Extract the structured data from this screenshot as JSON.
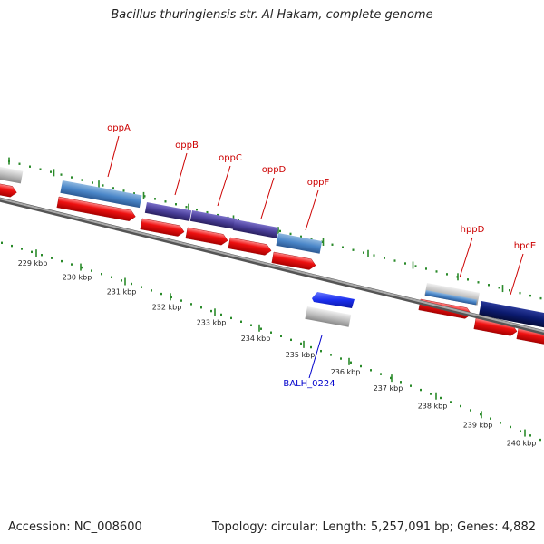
{
  "title": "Bacillus thuringiensis str. Al Hakam, complete genome",
  "footer": {
    "accession": "Accession: NC_008600",
    "summary": "Topology: circular; Length: 5,257,091 bp; Genes: 4,882"
  },
  "colors": {
    "background": "#ffffff",
    "backbone": "#777777",
    "tick": "#2a8a2a",
    "cds": "#ee1111",
    "gene_label": "#cc0000",
    "minus_label": "#0000cc",
    "blue_gene": "#4a86c8",
    "purple_gene": "#4a3f9a",
    "navy_gene": "#0b1a6e",
    "bright_blue": "#1a2eee",
    "gray_gene": "#b8b8b8"
  },
  "scale_labels": [
    "229 kbp",
    "230 kbp",
    "231 kbp",
    "232 kbp",
    "233 kbp",
    "234 kbp",
    "235 kbp",
    "236 kbp",
    "237 kbp",
    "238 kbp",
    "239 kbp",
    "240 kbp"
  ],
  "gene_labels": [
    "oppA",
    "oppB",
    "oppC",
    "oppD",
    "oppF",
    "hppD",
    "hpcE"
  ],
  "minus_labels": [
    "BALH_0224"
  ]
}
